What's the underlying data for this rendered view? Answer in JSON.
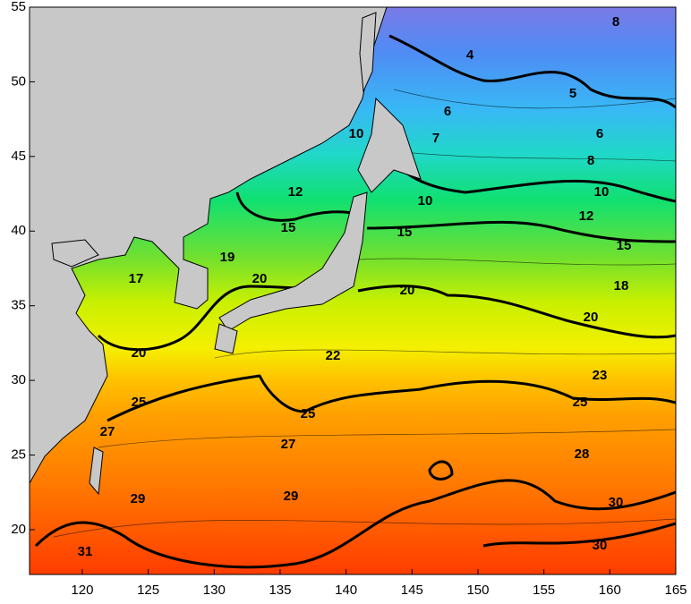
{
  "map": {
    "xlim": [
      116,
      165
    ],
    "ylim": [
      17,
      55
    ],
    "xticks": [
      120,
      125,
      130,
      135,
      140,
      145,
      150,
      155,
      160,
      165
    ],
    "yticks": [
      20,
      25,
      30,
      35,
      40,
      45,
      50,
      55
    ],
    "contour_labels": [
      4,
      8,
      5,
      6,
      6,
      7,
      8,
      10,
      10,
      10,
      12,
      12,
      15,
      15,
      15,
      17,
      18,
      19,
      20,
      20,
      20,
      20,
      22,
      23,
      25,
      25,
      25,
      27,
      27,
      28,
      29,
      29,
      30,
      30,
      31
    ]
  }
}
